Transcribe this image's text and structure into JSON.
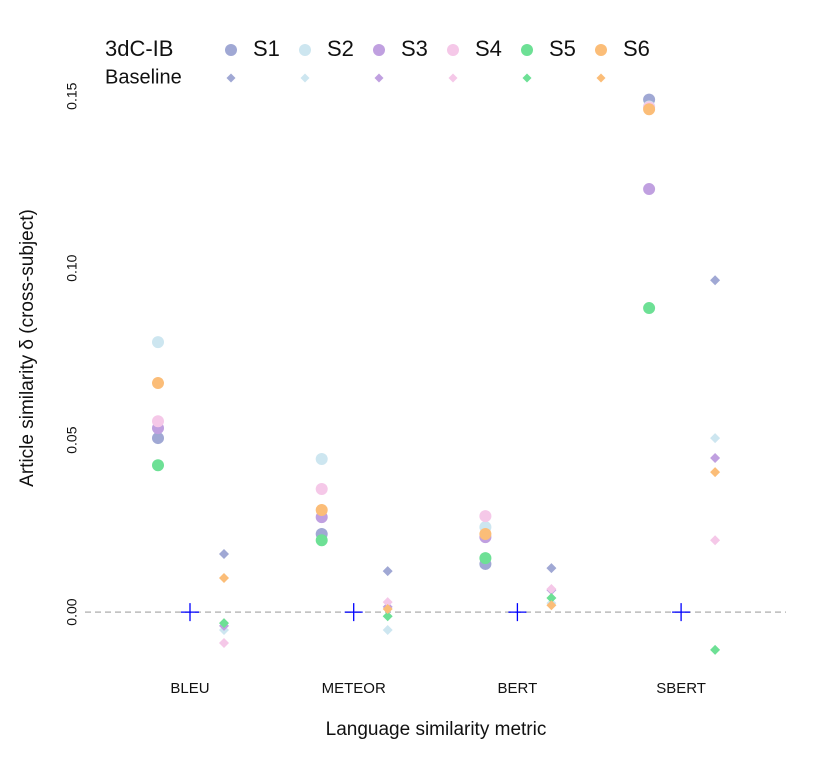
{
  "chart_data": {
    "type": "dot",
    "x_label": "Language similarity metric",
    "y_label": "Article similarity δ (cross-subject)",
    "categories": [
      "BLEU",
      "METEOR",
      "BERT",
      "SBERT"
    ],
    "groups": [
      {
        "name": "3dC-IB",
        "marker": "circle"
      },
      {
        "name": "Baseline",
        "marker": "diamond"
      }
    ],
    "series": [
      {
        "name": "S1",
        "color": "#a0a8d4",
        "values": [
          0.0506,
          0.0227,
          0.014,
          0.149
        ],
        "baseline_values": [
          0.0169,
          0.0119,
          0.0128,
          0.0965
        ]
      },
      {
        "name": "S2",
        "color": "#cde6f0",
        "values": [
          0.0785,
          0.0445,
          0.0247,
          0.147
        ],
        "baseline_values": [
          -0.0052,
          -0.0052,
          0.0026,
          0.0506
        ]
      },
      {
        "name": "S3",
        "color": "#c0a0e0",
        "values": [
          0.0535,
          0.0276,
          0.0218,
          0.123
        ],
        "baseline_values": [
          -0.004,
          0.0015,
          0.0064,
          0.0448
        ]
      },
      {
        "name": "S4",
        "color": "#f5c8e8",
        "values": [
          0.0555,
          0.0358,
          0.0279,
          0.1468
        ],
        "baseline_values": [
          -0.009,
          0.0029,
          0.0067,
          0.0209
        ]
      },
      {
        "name": "S5",
        "color": "#6de095",
        "values": [
          0.0427,
          0.0209,
          0.0157,
          0.0884
        ],
        "baseline_values": [
          -0.0032,
          -0.0012,
          0.0041,
          -0.011
        ]
      },
      {
        "name": "S6",
        "color": "#fbbd78",
        "values": [
          0.0666,
          0.0297,
          0.0227,
          0.1462
        ],
        "baseline_values": [
          0.0099,
          0.0009,
          0.002,
          0.0407
        ]
      }
    ],
    "reference": {
      "color": "#0000ff",
      "values": [
        0,
        0,
        0,
        0
      ]
    },
    "ylim": [
      -0.018,
      0.155
    ],
    "yticks": [
      {
        "value": 0,
        "label": "0.00"
      },
      {
        "value": 0.05,
        "label": "0.05"
      },
      {
        "value": 0.1,
        "label": "0.10"
      },
      {
        "value": 0.15,
        "label": "0.15"
      }
    ],
    "zero_line": true
  }
}
